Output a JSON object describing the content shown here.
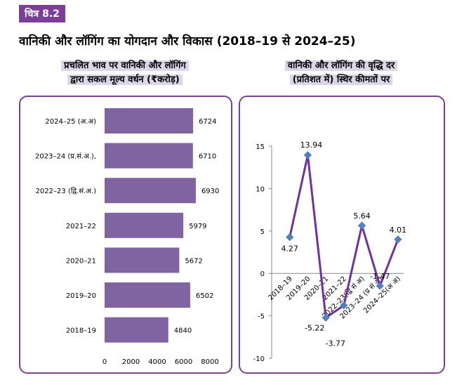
{
  "figure_label": "चित्र 8.2",
  "main_title": "वानिकी और लॉगिंग का योगदान और विकास  (2018–19 से 2024–25)",
  "left_title_line1": "प्रचलित भाव पर वानिकी और लॉगिंग",
  "left_title_line2": "द्वारा सकल मूल्य वर्धन (₹करोड़)",
  "right_title_line1": "वानिकी और लॉगिंग की वृद्धि दर",
  "right_title_line2": "(प्रतिशत में) स्थिर कीमतों पर",
  "colors": {
    "bar": "#8064a2",
    "line": "#7030a0",
    "marker": "#4f81bd",
    "frame": "#7b3f98"
  },
  "chart_data": [
    {
      "type": "bar",
      "orientation": "horizontal",
      "title": "प्रचलित भाव पर वानिकी और लॉगिंग द्वारा सकल मूल्य वर्धन (₹करोड़)",
      "categories": [
        "2024–25 (अ.अ)",
        "2023–24 (प्र.सं.अ.),",
        "2022–23 (द्वि.सं.अ.)",
        "2021–22",
        "2020–21",
        "2019–20",
        "2018–19"
      ],
      "values": [
        6724,
        6710,
        6930,
        5979,
        5672,
        6502,
        4840
      ],
      "xlim": [
        0,
        8000
      ],
      "xticks": [
        "0",
        "2000",
        "4000",
        "6000",
        "8000"
      ]
    },
    {
      "type": "line",
      "title": "वानिकी और लॉगिंग की वृद्धि दर (प्रतिशत में) स्थिर कीमतों पर",
      "x": [
        "2018–19",
        "2019–20",
        "2020–21",
        "2021–22",
        "2022–23(द्वि सं अ)",
        "2023–24 (प्र सं अ)",
        "2024–25(अ अ)"
      ],
      "values": [
        4.27,
        13.94,
        -5.22,
        -3.77,
        5.64,
        -1.47,
        4.01
      ],
      "labels": [
        "4.27",
        "13.94",
        "-5.22",
        "-3.77",
        "5.64",
        "-1.47",
        "4.01"
      ],
      "ylim": [
        -10,
        15
      ],
      "yticks": [
        "15",
        "10",
        "5",
        "0",
        "-5",
        "-10"
      ]
    }
  ]
}
